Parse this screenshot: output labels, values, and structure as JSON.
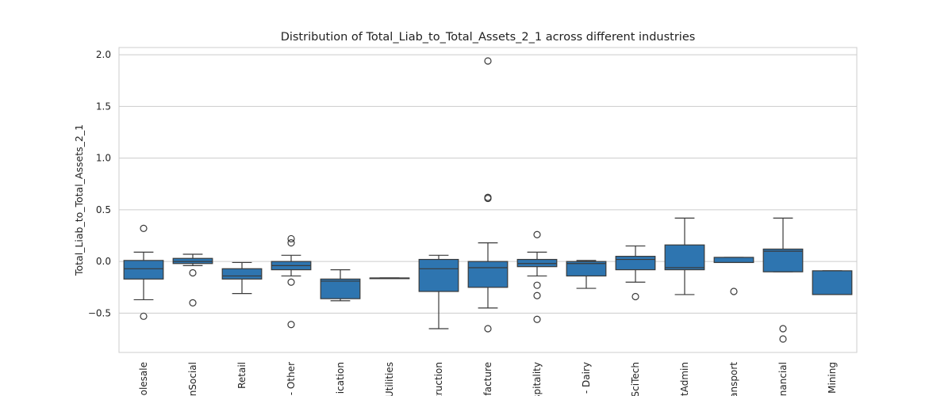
{
  "chart_data": {
    "type": "box",
    "title": "Distribution of Total_Liab_to_Total_Assets_2_1 across different industries",
    "xlabel": "",
    "ylabel": "Total_Liab_to_Total_Assets_2_1",
    "ylim": [
      -0.88,
      2.07
    ],
    "yticks": [
      -0.5,
      0.0,
      0.5,
      1.0,
      1.5,
      2.0
    ],
    "ytick_labels": [
      "−0.5",
      "0.0",
      "0.5",
      "1.0",
      "1.5",
      "2.0"
    ],
    "grid": true,
    "box_color": "#2e75b0",
    "categories": [
      {
        "label": "olesale",
        "whisker_low": -0.37,
        "q1": -0.17,
        "median": -0.07,
        "q3": 0.01,
        "whisker_high": 0.09,
        "outliers": [
          0.32,
          -0.53
        ]
      },
      {
        "label": "nSocial",
        "whisker_low": -0.04,
        "q1": -0.02,
        "median": 0.0,
        "q3": 0.03,
        "whisker_high": 0.07,
        "outliers": [
          -0.11,
          -0.4
        ]
      },
      {
        "label": "Retail",
        "whisker_low": -0.31,
        "q1": -0.17,
        "median": -0.14,
        "q3": -0.07,
        "whisker_high": -0.01,
        "outliers": []
      },
      {
        "label": "- Other",
        "whisker_low": -0.14,
        "q1": -0.08,
        "median": -0.04,
        "q3": 0.0,
        "whisker_high": 0.06,
        "outliers": [
          0.22,
          0.18,
          -0.2,
          -0.61
        ]
      },
      {
        "label": "ication",
        "whisker_low": -0.38,
        "q1": -0.36,
        "median": -0.19,
        "q3": -0.17,
        "whisker_high": -0.08,
        "outliers": []
      },
      {
        "label": "Utilities",
        "whisker_low": -0.16,
        "q1": -0.16,
        "median": -0.16,
        "q3": -0.16,
        "whisker_high": -0.16,
        "outliers": []
      },
      {
        "label": "truction",
        "whisker_low": -0.65,
        "q1": -0.29,
        "median": -0.07,
        "q3": 0.02,
        "whisker_high": 0.06,
        "outliers": []
      },
      {
        "label": "facture",
        "whisker_low": -0.45,
        "q1": -0.25,
        "median": -0.06,
        "q3": 0.0,
        "whisker_high": 0.18,
        "outliers": [
          1.94,
          0.62,
          0.61,
          -0.65
        ]
      },
      {
        "label": "spitality",
        "whisker_low": -0.14,
        "q1": -0.05,
        "median": -0.02,
        "q3": 0.02,
        "whisker_high": 0.09,
        "outliers": [
          0.26,
          -0.23,
          -0.33,
          -0.56
        ]
      },
      {
        "label": "- Dairy",
        "whisker_low": -0.26,
        "q1": -0.14,
        "median": -0.02,
        "q3": 0.0,
        "whisker_high": 0.01,
        "outliers": []
      },
      {
        "label": "SciTech",
        "whisker_low": -0.2,
        "q1": -0.08,
        "median": 0.02,
        "q3": 0.05,
        "whisker_high": 0.15,
        "outliers": [
          -0.34
        ]
      },
      {
        "label": "tAdmin",
        "whisker_low": -0.32,
        "q1": -0.08,
        "median": -0.06,
        "q3": 0.16,
        "whisker_high": 0.42,
        "outliers": []
      },
      {
        "label": "ansport",
        "whisker_low": -0.01,
        "q1": -0.01,
        "median": -0.01,
        "q3": 0.04,
        "whisker_high": 0.04,
        "outliers": [
          -0.29
        ]
      },
      {
        "label": "nancial",
        "whisker_low": -0.1,
        "q1": -0.1,
        "median": 0.1,
        "q3": 0.12,
        "whisker_high": 0.42,
        "outliers": [
          -0.65,
          -0.75
        ]
      },
      {
        "label": "Mining",
        "whisker_low": -0.32,
        "q1": -0.32,
        "median": -0.32,
        "q3": -0.09,
        "whisker_high": -0.09,
        "outliers": []
      }
    ]
  }
}
